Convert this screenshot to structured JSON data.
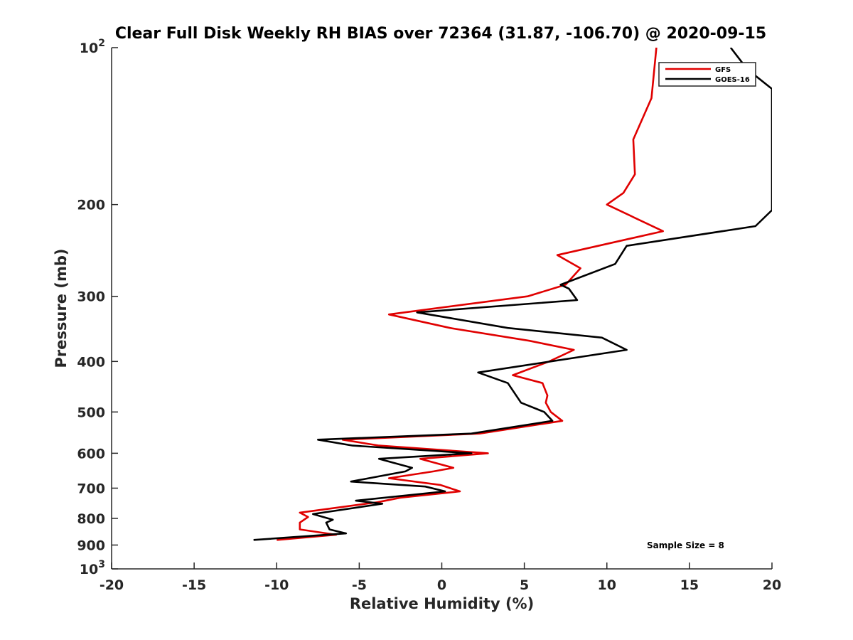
{
  "chart_data": {
    "type": "line",
    "title": "Clear Full Disk Weekly RH BIAS over 72364 (31.87, -106.70) @ 2020-09-15",
    "xlabel": "Relative Humidity (%)",
    "ylabel": "Pressure (mb)",
    "xlim": [
      -20,
      20
    ],
    "ylim": [
      100,
      1000
    ],
    "y_scale": "log",
    "y_reversed": true,
    "grid": false,
    "legend_position": "top-right",
    "x_ticks": [
      "-20",
      "-15",
      "-10",
      "-5",
      "0",
      "5",
      "10",
      "15",
      "20"
    ],
    "y_ticks": [
      {
        "value": 100,
        "base": "10",
        "exp": "2"
      },
      {
        "value": 200,
        "label": "200"
      },
      {
        "value": 300,
        "label": "300"
      },
      {
        "value": 400,
        "label": "400"
      },
      {
        "value": 500,
        "label": "500"
      },
      {
        "value": 600,
        "label": "600"
      },
      {
        "value": 700,
        "label": "700"
      },
      {
        "value": 800,
        "label": "800"
      },
      {
        "value": 900,
        "label": "900"
      },
      {
        "value": 1000,
        "base": "10",
        "exp": "3"
      }
    ],
    "series": [
      {
        "name": "GFS",
        "color": "#e00000",
        "points": [
          [
            13.0,
            100
          ],
          [
            12.7,
            125
          ],
          [
            11.6,
            150
          ],
          [
            11.7,
            175
          ],
          [
            11.0,
            190
          ],
          [
            10.0,
            200
          ],
          [
            13.4,
            225
          ],
          [
            7.0,
            250
          ],
          [
            8.4,
            265
          ],
          [
            7.5,
            285
          ],
          [
            5.2,
            300
          ],
          [
            -3.2,
            325
          ],
          [
            0.5,
            345
          ],
          [
            5.3,
            365
          ],
          [
            8.0,
            380
          ],
          [
            6.5,
            400
          ],
          [
            4.3,
            425
          ],
          [
            6.1,
            440
          ],
          [
            6.4,
            465
          ],
          [
            6.3,
            480
          ],
          [
            6.6,
            500
          ],
          [
            7.3,
            520
          ],
          [
            2.3,
            550
          ],
          [
            -6.0,
            565
          ],
          [
            -3.8,
            580
          ],
          [
            2.8,
            600
          ],
          [
            -1.3,
            615
          ],
          [
            0.7,
            640
          ],
          [
            -0.5,
            650
          ],
          [
            -3.2,
            670
          ],
          [
            -0.1,
            690
          ],
          [
            1.1,
            710
          ],
          [
            -2.5,
            730
          ],
          [
            -3.9,
            745
          ],
          [
            -8.6,
            780
          ],
          [
            -8.1,
            795
          ],
          [
            -8.6,
            815
          ],
          [
            -8.6,
            840
          ],
          [
            -6.4,
            860
          ],
          [
            -10.0,
            880
          ]
        ]
      },
      {
        "name": "GOES-16",
        "color": "#000000",
        "points": [
          [
            17.5,
            100
          ],
          [
            18.5,
            110
          ],
          [
            20.0,
            120
          ],
          [
            20.0,
            205
          ],
          [
            19.0,
            220
          ],
          [
            11.2,
            240
          ],
          [
            10.5,
            260
          ],
          [
            7.2,
            285
          ],
          [
            7.7,
            290
          ],
          [
            8.2,
            305
          ],
          [
            -1.5,
            322
          ],
          [
            4.0,
            345
          ],
          [
            9.7,
            360
          ],
          [
            11.2,
            380
          ],
          [
            2.2,
            420
          ],
          [
            4.0,
            440
          ],
          [
            4.8,
            480
          ],
          [
            6.2,
            500
          ],
          [
            6.7,
            520
          ],
          [
            1.8,
            550
          ],
          [
            -7.5,
            565
          ],
          [
            -5.4,
            580
          ],
          [
            1.8,
            600
          ],
          [
            -3.8,
            615
          ],
          [
            -1.8,
            640
          ],
          [
            -2.2,
            650
          ],
          [
            -5.5,
            680
          ],
          [
            -1.0,
            695
          ],
          [
            0.2,
            710
          ],
          [
            -5.2,
            740
          ],
          [
            -3.6,
            750
          ],
          [
            -7.8,
            785
          ],
          [
            -6.6,
            805
          ],
          [
            -7.0,
            815
          ],
          [
            -6.8,
            840
          ],
          [
            -5.8,
            855
          ],
          [
            -11.4,
            880
          ]
        ]
      }
    ],
    "legend": [
      "GFS",
      "GOES-16"
    ],
    "annotation": "Sample Size = 8"
  }
}
